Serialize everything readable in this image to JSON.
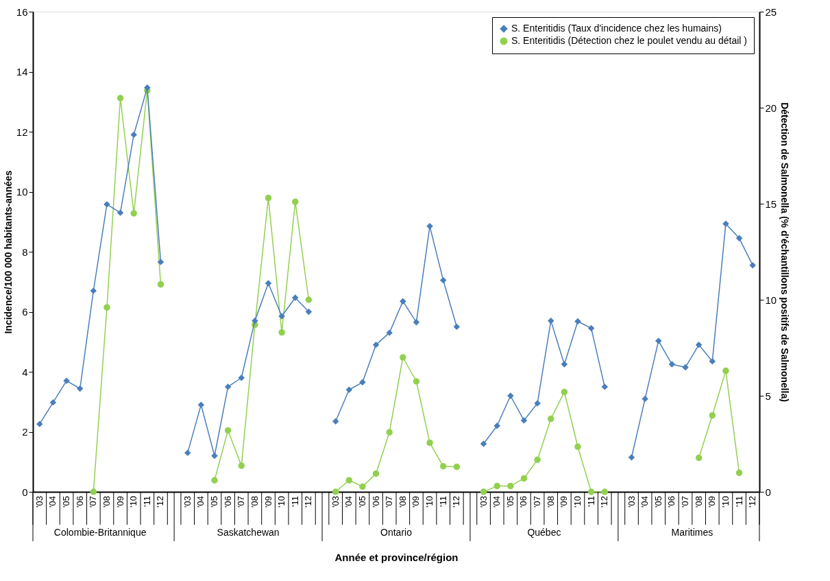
{
  "chart_data": {
    "type": "line",
    "xlabel": "Année et province/région",
    "ylabel": "Incidence/100 000 habitants-années",
    "y2label": "Détection de Salmonella (% d'échantillons positifs de Salmonella)",
    "categories": [
      "'03",
      "'04",
      "'05",
      "'06",
      "'07",
      "'08",
      "'09",
      "'10",
      "'11",
      "'12",
      null,
      "'03",
      "'04",
      "'05",
      "'06",
      "'07",
      "'08",
      "'09",
      "'10",
      "'11",
      "'12",
      null,
      "'03",
      "'04",
      "'05",
      "'06",
      "'07",
      "'08",
      "'09",
      "'10",
      "'11",
      "'12",
      null,
      "'03",
      "'04",
      "'05",
      "'06",
      "'07",
      "'08",
      "'09",
      "'10",
      "'11",
      "'12",
      null,
      "'03",
      "'04",
      "'05",
      "'06",
      "'07",
      "'08",
      "'09",
      "'10",
      "'11",
      "'12"
    ],
    "annotations": [
      "Colombie-Britannique",
      "Saskatchewan",
      "Ontario",
      "Québec",
      "Maritimes"
    ],
    "series": [
      {
        "name": "S. Enteritidis (Taux d'incidence chez les humains)",
        "color": "#4a7ebb",
        "marker": "diamond",
        "axis": "y",
        "values": [
          2.26,
          2.98,
          3.7,
          3.44,
          6.7,
          9.58,
          9.3,
          11.9,
          13.47,
          7.66,
          null,
          1.3,
          2.9,
          1.2,
          3.5,
          3.8,
          5.7,
          6.95,
          5.85,
          6.47,
          6.0,
          null,
          2.35,
          3.4,
          3.65,
          4.9,
          5.3,
          6.35,
          5.65,
          8.85,
          7.05,
          5.5,
          null,
          1.6,
          2.2,
          3.2,
          2.38,
          2.95,
          5.7,
          4.25,
          5.68,
          5.45,
          3.5,
          null,
          1.15,
          3.1,
          5.03,
          4.25,
          4.15,
          4.9,
          4.35,
          8.93,
          8.45,
          7.55
        ]
      },
      {
        "name": "S. Enteritidis (Détection chez le poulet vendu au détail )",
        "color": "#92d050",
        "marker": "circle",
        "axis": "y2",
        "values": [
          null,
          null,
          null,
          null,
          0,
          9.6,
          20.5,
          14.5,
          20.9,
          10.8,
          null,
          null,
          null,
          0.6,
          3.2,
          1.36,
          8.7,
          15.3,
          8.3,
          15.1,
          10.0,
          null,
          0,
          0.6,
          0.27,
          0.95,
          3.1,
          7.0,
          5.75,
          2.55,
          1.33,
          1.3,
          null,
          0,
          0.3,
          0.3,
          0.7,
          1.67,
          3.8,
          5.2,
          2.35,
          0,
          0,
          null,
          null,
          null,
          null,
          null,
          null,
          1.77,
          3.98,
          6.3,
          0.99,
          null
        ]
      }
    ],
    "ylim": [
      0,
      16
    ],
    "yticks": [
      0,
      2,
      4,
      6,
      8,
      10,
      12,
      14,
      16
    ],
    "y2lim": [
      0,
      25
    ],
    "y2ticks": [
      0,
      5,
      10,
      15,
      20,
      25
    ],
    "grid": false,
    "legend": "top right",
    "line_style": "solid"
  }
}
